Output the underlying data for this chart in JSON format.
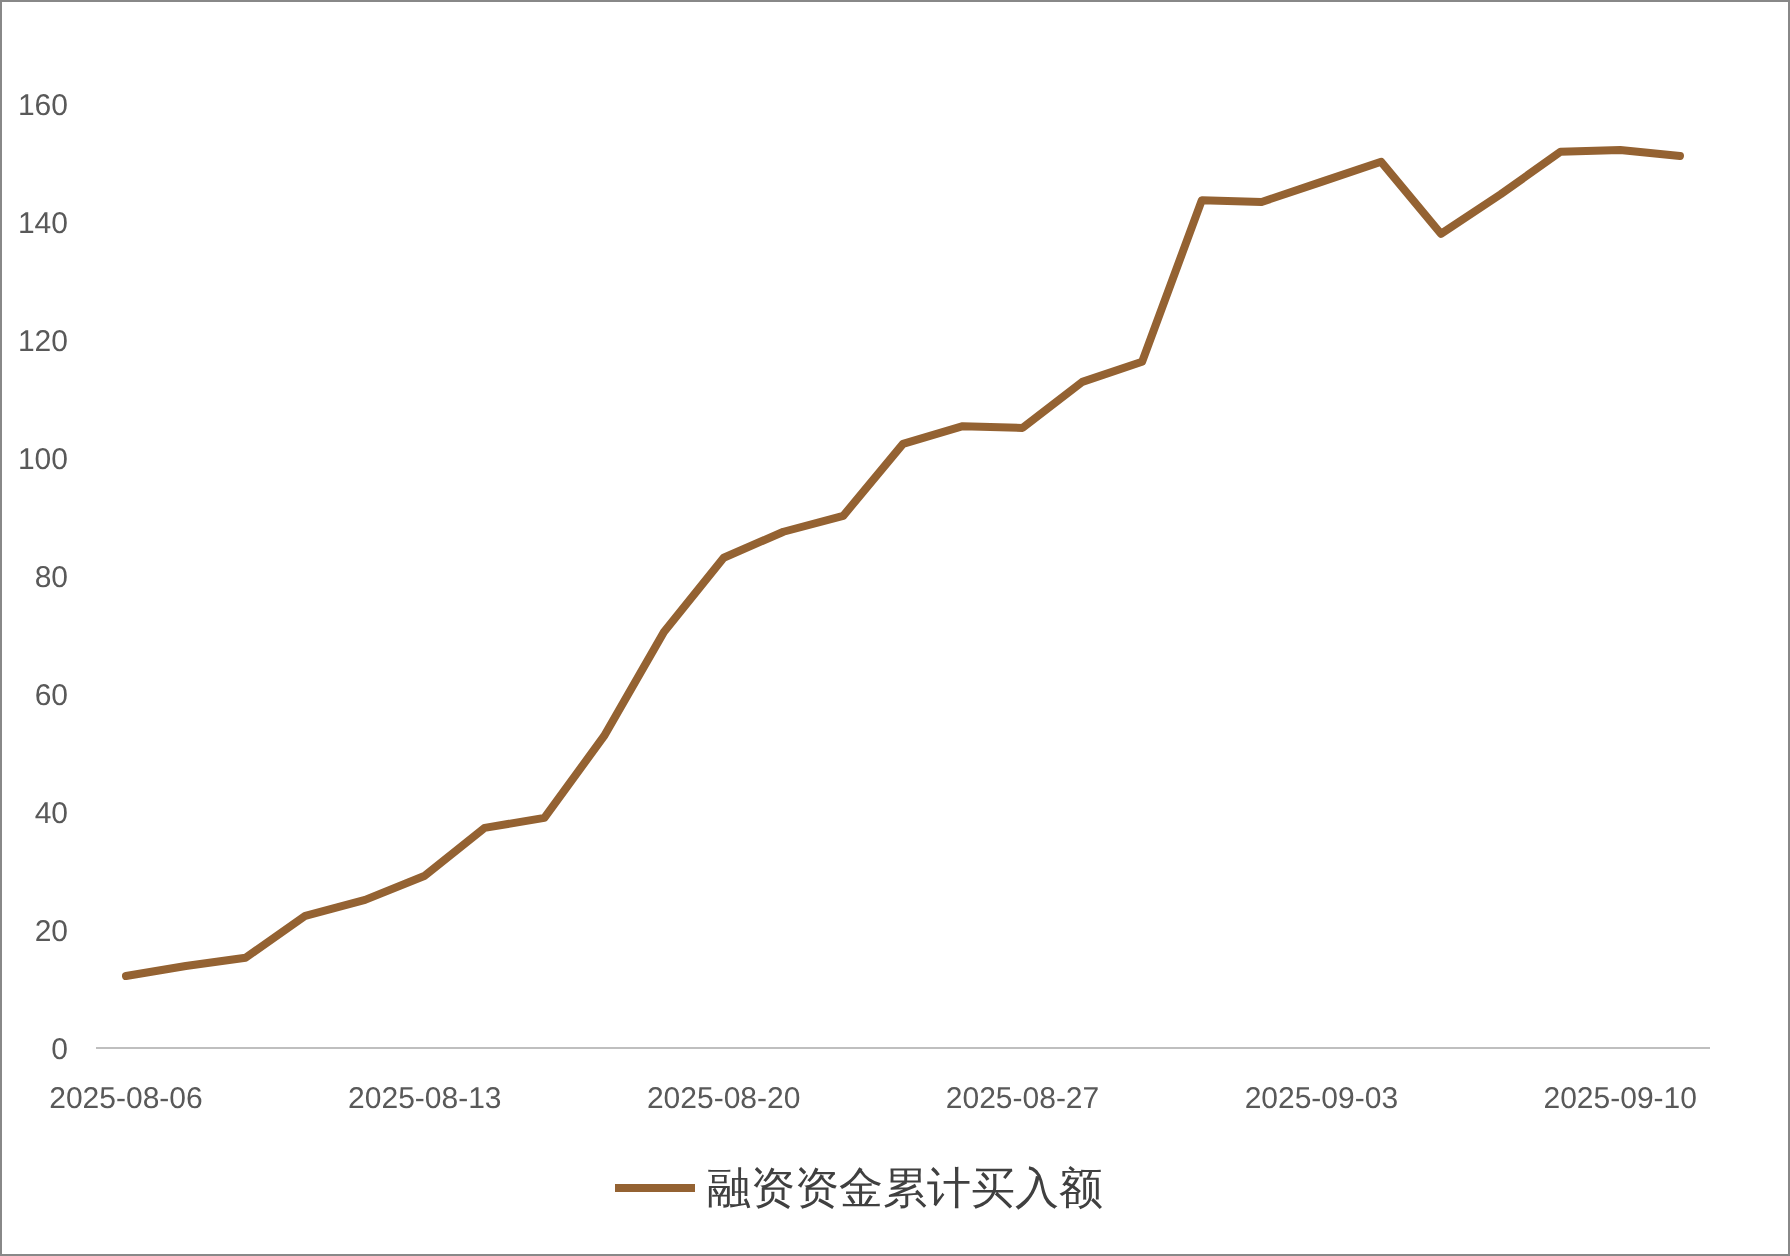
{
  "chart_data": {
    "type": "line",
    "categories": [
      "2025-08-06",
      null,
      null,
      null,
      null,
      "2025-08-13",
      null,
      null,
      null,
      null,
      "2025-08-20",
      null,
      null,
      null,
      null,
      "2025-08-27",
      null,
      null,
      null,
      null,
      "2025-09-03",
      null,
      null,
      null,
      null,
      "2025-09-10",
      null
    ],
    "series": [
      {
        "name": "融资资金累计买入额",
        "color": "#946232",
        "values": [
          12.2,
          13.9,
          15.3,
          22.4,
          25.1,
          29.2,
          37.3,
          39.0,
          52.9,
          70.5,
          83.1,
          87.5,
          90.2,
          102.4,
          105.4,
          105.1,
          112.9,
          116.3,
          143.7,
          143.4,
          146.8,
          150.2,
          138.0,
          144.7,
          151.9,
          152.2,
          151.2
        ]
      }
    ],
    "ylim": [
      0,
      160
    ],
    "yticks": [
      0,
      20,
      40,
      60,
      80,
      100,
      120,
      140,
      160
    ],
    "grid": false,
    "legend": "bottom",
    "marker": "none",
    "line_style": "solid"
  }
}
